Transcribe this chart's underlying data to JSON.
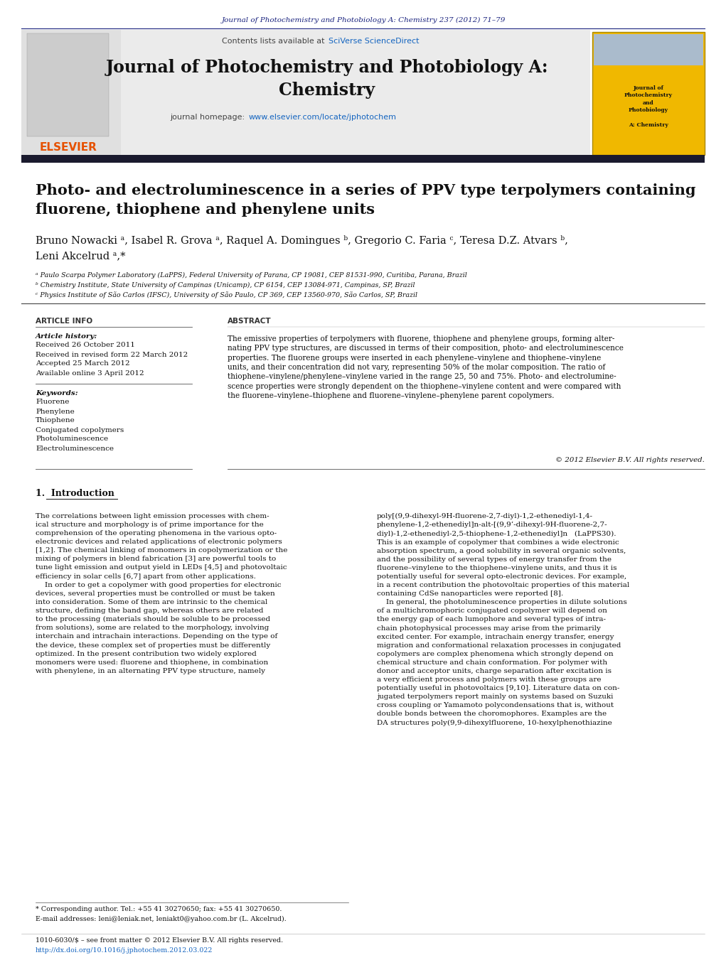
{
  "page_bg": "#ffffff",
  "top_journal_ref": "Journal of Photochemistry and Photobiology A: Chemistry 237 (2012) 71–79",
  "top_journal_ref_color": "#1a237e",
  "sciverse_text": "SciVerse ScienceDirect",
  "sciverse_color": "#1565c0",
  "journal_title_line1": "Journal of Photochemistry and Photobiology A:",
  "journal_title_line2": "Chemistry",
  "homepage_url": "www.elsevier.com/locate/jphotochem",
  "homepage_url_color": "#1565c0",
  "elsevier_color": "#e65100",
  "article_info_header": "ARTICLE INFO",
  "abstract_header": "ABSTRACT",
  "article_history_label": "Article history:",
  "history_items": [
    "Received 26 October 2011",
    "Received in revised form 22 March 2012",
    "Accepted 25 March 2012",
    "Available online 3 April 2012"
  ],
  "keywords_label": "Keywords:",
  "keywords": [
    "Fluorene",
    "Phenylene",
    "Thiophene",
    "Conjugated copolymers",
    "Photoluminescence",
    "Electroluminescence"
  ],
  "abstract_text": "The emissive properties of terpolymers with fluorene, thiophene and phenylene groups, forming alter-\nnating PPV type structures, are discussed in terms of their composition, photo- and electroluminescence\nproperties. The fluorene groups were inserted in each phenylene–vinylene and thiophene–vinylene\nunits, and their concentration did not vary, representing 50% of the molar composition. The ratio of\nthiophene–vinylene/phenylene–vinylene varied in the range 25, 50 and 75%. Photo- and electrolumine-\nscence properties were strongly dependent on the thiophene–vinylene content and were compared with\nthe fluorene–vinylene–thiophene and fluorene–vinylene–phenylene parent copolymers.",
  "copyright": "© 2012 Elsevier B.V. All rights reserved.",
  "intro_header": "1.  Introduction",
  "intro_text_col1": "The correlations between light emission processes with chem-\nical structure and morphology is of prime importance for the\ncomprehension of the operating phenomena in the various opto-\nelectronic devices and related applications of electronic polymers\n[1,2]. The chemical linking of monomers in copolymerization or the\nmixing of polymers in blend fabrication [3] are powerful tools to\ntune light emission and output yield in LEDs [4,5] and photovoltaic\nefficiency in solar cells [6,7] apart from other applications.\n    In order to get a copolymer with good properties for electronic\ndevices, several properties must be controlled or must be taken\ninto consideration. Some of them are intrinsic to the chemical\nstructure, defining the band gap, whereas others are related\nto the processing (materials should be soluble to be processed\nfrom solutions), some are related to the morphology, involving\ninterchain and intrachain interactions. Depending on the type of\nthe device, these complex set of properties must be differently\noptimized. In the present contribution two widely explored\nmonomers were used: fluorene and thiophene, in combination\nwith phenylene, in an alternating PPV type structure, namely",
  "intro_text_col2": "poly[(9,9-dihexyl-9H-fluorene-2,7-diyl)-1,2-ethenediyl-1,4-\nphenylene-1,2-ethenediyl]n-alt-[(9,9’-dihexyl-9H-fluorene-2,7-\ndiyl)-1,2-ethenediyl-2,5-thiophene-1,2-ethenediyl]n   (LaPPS30).\nThis is an example of copolymer that combines a wide electronic\nabsorption spectrum, a good solubility in several organic solvents,\nand the possibility of several types of energy transfer from the\nfluorene–vinylene to the thiophene–vinylene units, and thus it is\npotentially useful for several opto-electronic devices. For example,\nin a recent contribution the photovoltaic properties of this material\ncontaining CdSe nanoparticles were reported [8].\n    In general, the photoluminescence properties in dilute solutions\nof a multichromophoric conjugated copolymer will depend on\nthe energy gap of each lumophore and several types of intra-\nchain photophysical processes may arise from the primarily\nexcited center. For example, intrachain energy transfer, energy\nmigration and conformational relaxation processes in conjugated\ncopolymers are complex phenomena which strongly depend on\nchemical structure and chain conformation. For polymer with\ndonor and acceptor units, charge separation after excitation is\na very efficient process and polymers with these groups are\npotentially useful in photovoltaics [9,10]. Literature data on con-\njugated terpolymers report mainly on systems based on Suzuki\ncross coupling or Yamamoto polycondensations that is, without\ndouble bonds between the choromophores. Examples are the\nDA structures poly(9,9-dihexylfluorene, 10-hexylphenothiazine",
  "footnote_star": "* Corresponding author. Tel.: +55 41 30270650; fax: +55 41 30270650.",
  "footnote_email": "E-mail addresses: leni@leniak.net, leniakt0@yahoo.com.br (L. Akcelrud).",
  "footer_issn": "1010-6030/$ – see front matter © 2012 Elsevier B.V. All rights reserved.",
  "footer_doi": "http://dx.doi.org/10.1016/j.jphotochem.2012.03.022",
  "affil_a": "ᵃ Paulo Scarpa Polymer Laboratory (LaPPS), Federal University of Parana, CP 19081, CEP 81531-990, Curitiba, Parana, Brazil",
  "affil_b": "ᵇ Chemistry Institute, State University of Campinas (Unicamp), CP 6154, CEP 13084-971, Campinas, SP, Brazil",
  "affil_c": "ᶜ Physics Institute of São Carlos (IFSC), University of São Paulo, CP 369, CEP 13560-970, São Carlos, SP, Brazil"
}
